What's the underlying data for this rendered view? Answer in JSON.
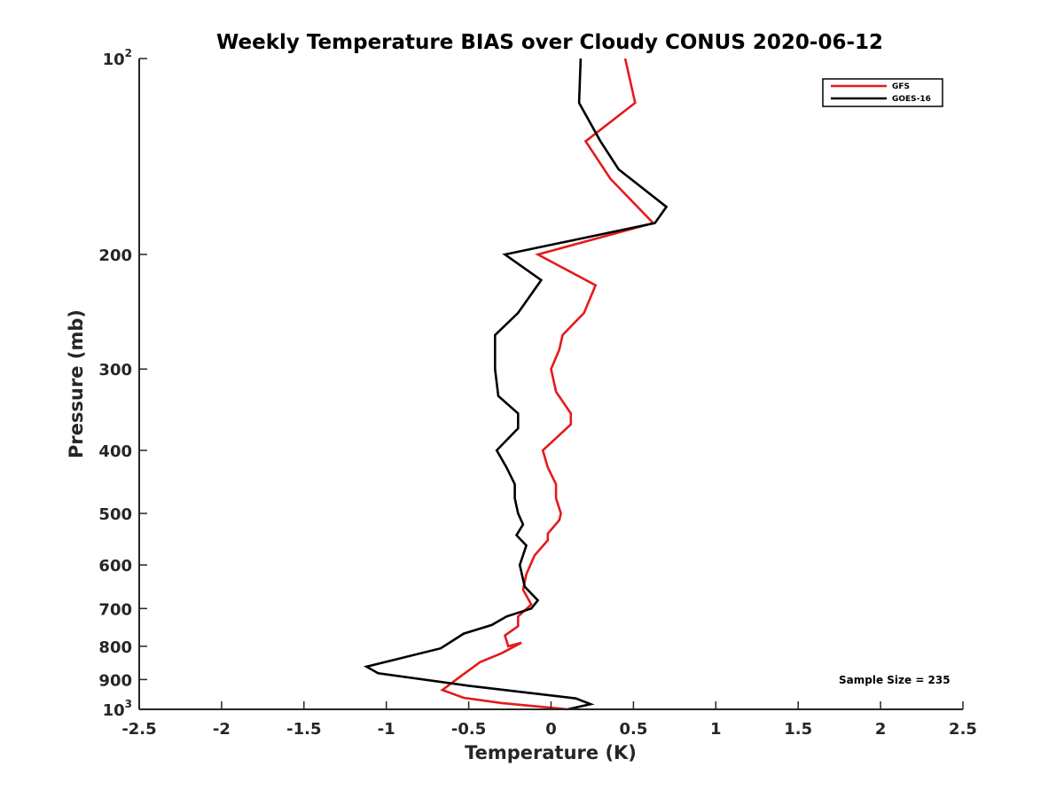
{
  "chart_data": {
    "type": "line",
    "title": "Weekly Temperature BIAS over Cloudy CONUS 2020-06-12",
    "xlabel": "Temperature (K)",
    "ylabel": "Pressure (mb)",
    "xlim": [
      -2.5,
      2.5
    ],
    "ylim": [
      100,
      1000
    ],
    "yscale": "log",
    "y_reversed": true,
    "grid": false,
    "legend_position": "top-right",
    "annotation": "Sample Size = 235",
    "x_ticks": [
      "-2.5",
      "-2",
      "-1.5",
      "-1",
      "-0.5",
      "0",
      "0.5",
      "1",
      "1.5",
      "2",
      "2.5"
    ],
    "x_tick_values": [
      -2.5,
      -2,
      -1.5,
      -1,
      -0.5,
      0,
      0.5,
      1,
      1.5,
      2,
      2.5
    ],
    "y_ticks": [
      {
        "value": 100,
        "base": "10",
        "exp": "2"
      },
      {
        "value": 200,
        "label": "200"
      },
      {
        "value": 300,
        "label": "300"
      },
      {
        "value": 400,
        "label": "400"
      },
      {
        "value": 500,
        "label": "500"
      },
      {
        "value": 600,
        "label": "600"
      },
      {
        "value": 700,
        "label": "700"
      },
      {
        "value": 800,
        "label": "800"
      },
      {
        "value": 900,
        "label": "900"
      },
      {
        "value": 1000,
        "base": "10",
        "exp": "3"
      }
    ],
    "series": [
      {
        "name": "GFS",
        "color": "#e41a1c",
        "points": [
          [
            0.45,
            100
          ],
          [
            0.51,
            117
          ],
          [
            0.21,
            134
          ],
          [
            0.36,
            153
          ],
          [
            0.62,
            179
          ],
          [
            -0.08,
            200
          ],
          [
            0.27,
            223
          ],
          [
            0.2,
            246
          ],
          [
            0.07,
            266
          ],
          [
            0.05,
            280
          ],
          [
            0.0,
            300
          ],
          [
            0.03,
            325
          ],
          [
            0.12,
            351
          ],
          [
            0.12,
            365
          ],
          [
            -0.05,
            400
          ],
          [
            -0.02,
            425
          ],
          [
            0.03,
            451
          ],
          [
            0.03,
            474
          ],
          [
            0.06,
            500
          ],
          [
            0.05,
            512
          ],
          [
            -0.02,
            537
          ],
          [
            -0.02,
            550
          ],
          [
            -0.1,
            580
          ],
          [
            -0.15,
            620
          ],
          [
            -0.17,
            655
          ],
          [
            -0.12,
            690
          ],
          [
            -0.2,
            720
          ],
          [
            -0.2,
            745
          ],
          [
            -0.28,
            770
          ],
          [
            -0.26,
            800
          ],
          [
            -0.18,
            790
          ],
          [
            -0.3,
            820
          ],
          [
            -0.43,
            846
          ],
          [
            -0.55,
            890
          ],
          [
            -0.66,
            934
          ],
          [
            -0.53,
            960
          ],
          [
            -0.3,
            978
          ],
          [
            0.1,
            1000
          ]
        ]
      },
      {
        "name": "GOES-16",
        "color": "#000000",
        "points": [
          [
            0.18,
            100
          ],
          [
            0.17,
            117
          ],
          [
            0.3,
            134
          ],
          [
            0.41,
            148
          ],
          [
            0.7,
            169
          ],
          [
            0.63,
            179
          ],
          [
            -0.28,
            200
          ],
          [
            -0.06,
            219
          ],
          [
            -0.2,
            246
          ],
          [
            -0.34,
            266
          ],
          [
            -0.34,
            280
          ],
          [
            -0.34,
            300
          ],
          [
            -0.32,
            330
          ],
          [
            -0.2,
            351
          ],
          [
            -0.2,
            370
          ],
          [
            -0.33,
            400
          ],
          [
            -0.27,
            425
          ],
          [
            -0.22,
            451
          ],
          [
            -0.22,
            474
          ],
          [
            -0.2,
            500
          ],
          [
            -0.17,
            520
          ],
          [
            -0.21,
            540
          ],
          [
            -0.15,
            560
          ],
          [
            -0.19,
            600
          ],
          [
            -0.16,
            648
          ],
          [
            -0.08,
            680
          ],
          [
            -0.12,
            700
          ],
          [
            -0.27,
            720
          ],
          [
            -0.36,
            742
          ],
          [
            -0.53,
            765
          ],
          [
            -0.67,
            806
          ],
          [
            -1.12,
            860
          ],
          [
            -1.05,
            880
          ],
          [
            -0.5,
            920
          ],
          [
            0.15,
            962
          ],
          [
            0.24,
            982
          ],
          [
            0.1,
            1000
          ]
        ]
      }
    ]
  }
}
